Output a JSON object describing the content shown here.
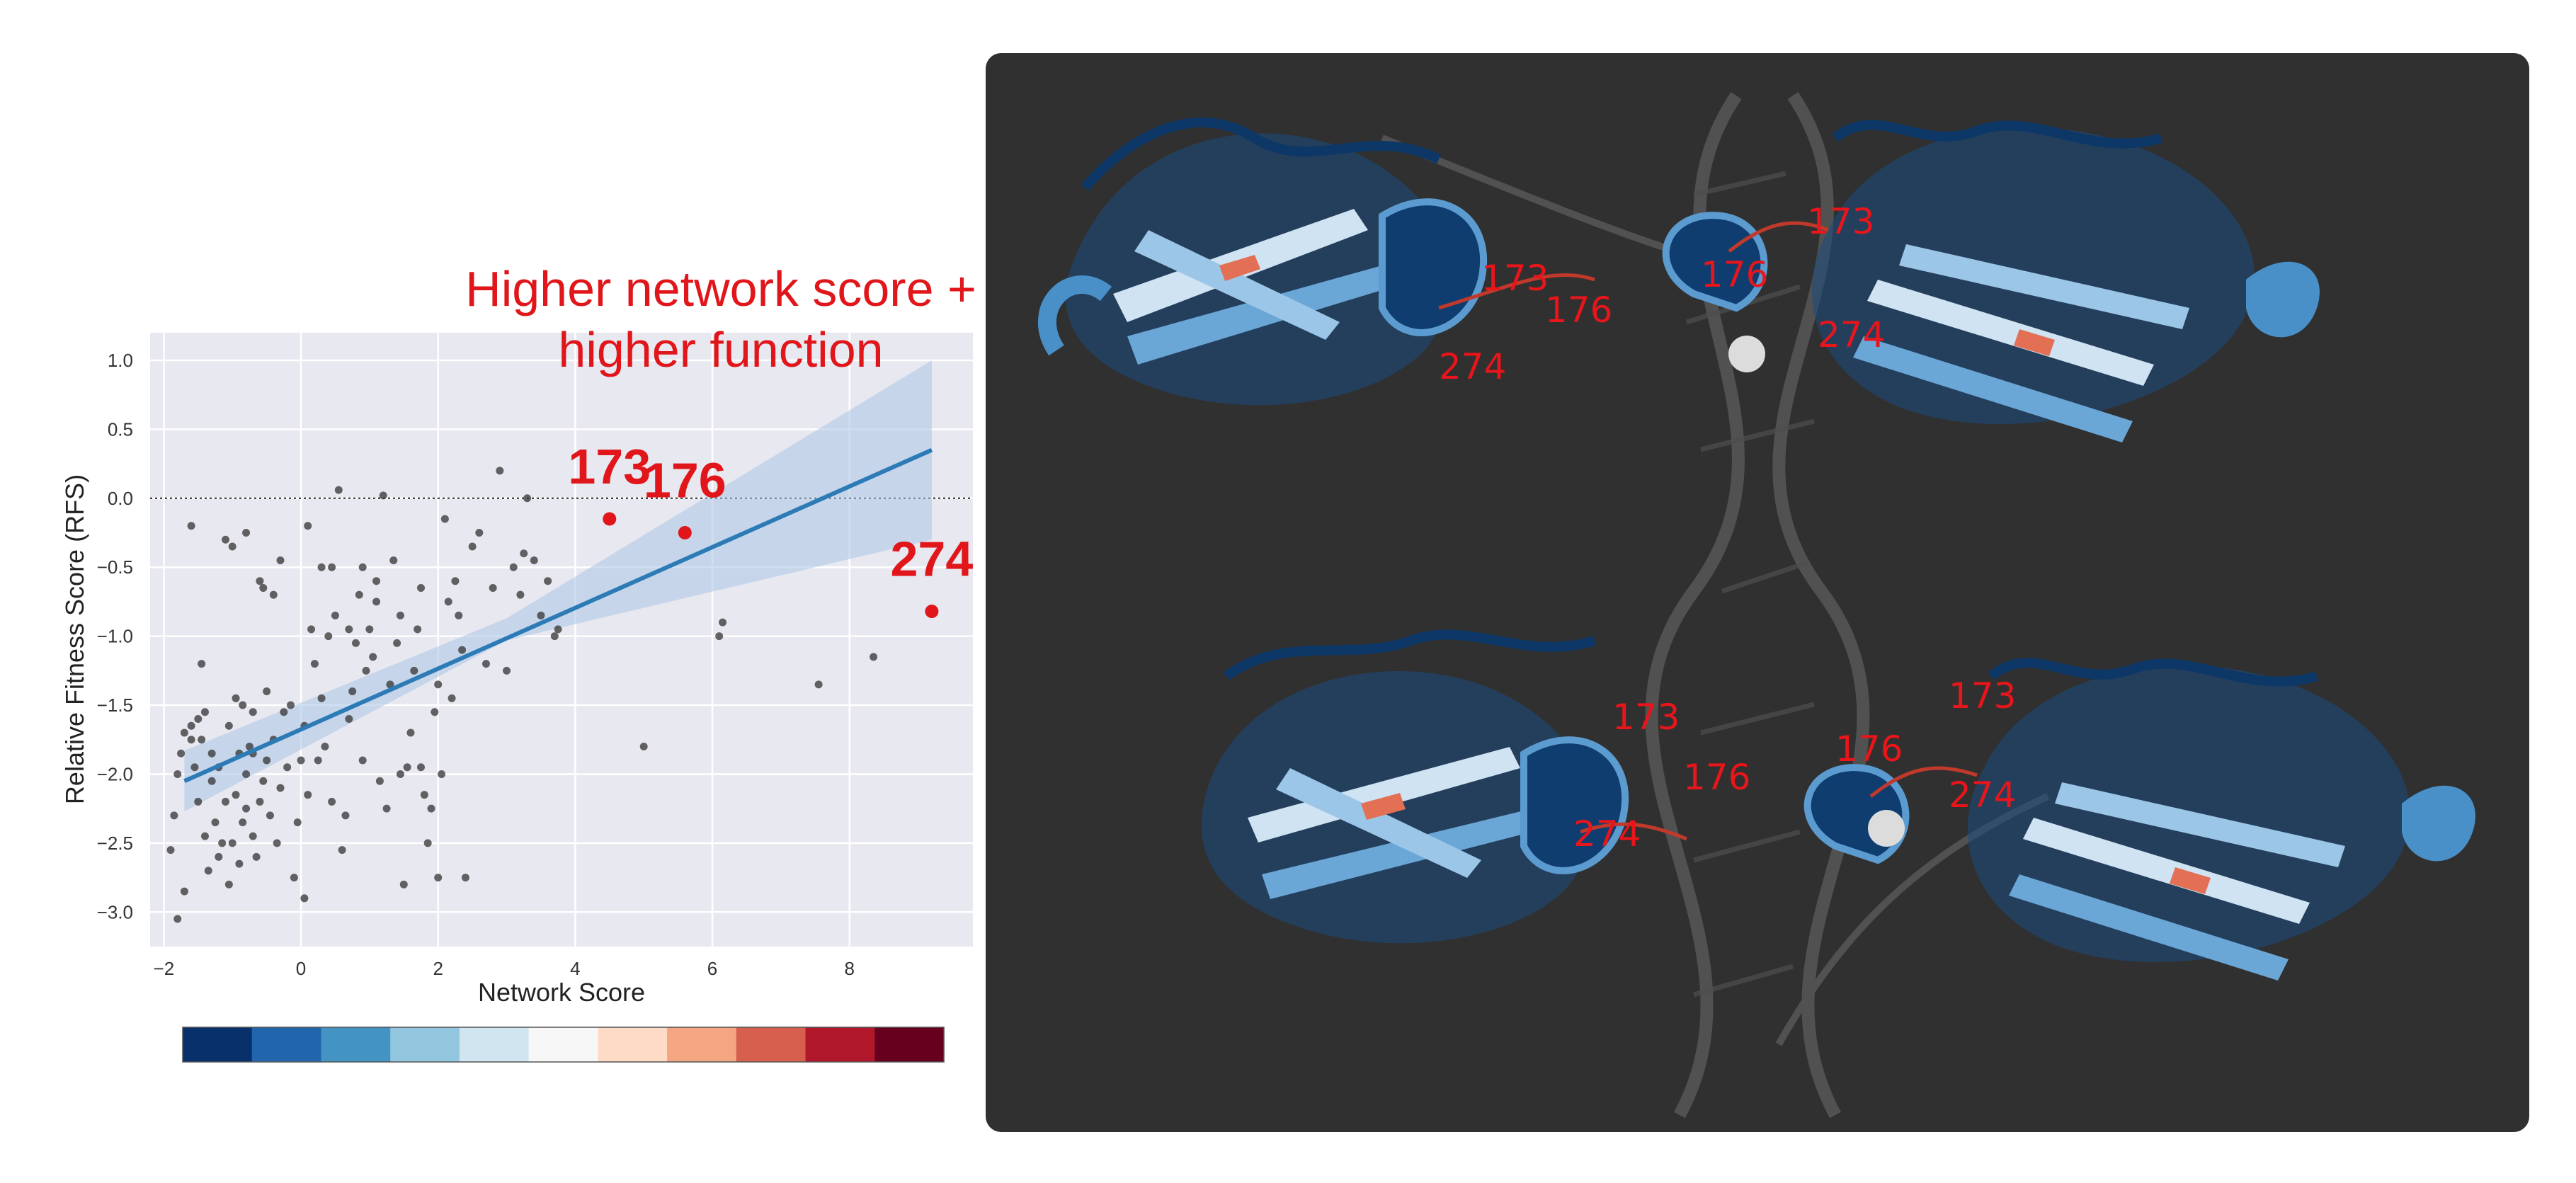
{
  "chart_data": {
    "type": "scatter",
    "title": "",
    "xlabel": "Network Score",
    "ylabel": "Relative Fitness Score (RFS)",
    "xlim": [
      -2.2,
      9.8
    ],
    "ylim": [
      -3.25,
      1.2
    ],
    "x_ticks": [
      -2,
      0,
      2,
      4,
      6,
      8
    ],
    "y_ticks": [
      1.0,
      0.5,
      0.0,
      -0.5,
      -1.0,
      -1.5,
      -2.0,
      -2.5,
      -3.0
    ],
    "x_tick_labels": [
      "−2",
      "0",
      "2",
      "4",
      "6",
      "8"
    ],
    "y_tick_labels": [
      "1.0",
      "0.5",
      "0.0",
      "−0.5",
      "−1.0",
      "−1.5",
      "−2.0",
      "−2.5",
      "−3.0"
    ],
    "grid": true,
    "reference_line": {
      "y": 0.0,
      "style": "dotted"
    },
    "series": [
      {
        "marker_color": "#333333",
        "points": [
          [
            -1.6,
            -0.2
          ],
          [
            -1.8,
            -3.05
          ],
          [
            -1.7,
            -2.85
          ],
          [
            -1.9,
            -2.55
          ],
          [
            -1.85,
            -2.3
          ],
          [
            -1.8,
            -2.0
          ],
          [
            -1.75,
            -1.85
          ],
          [
            -1.7,
            -1.7
          ],
          [
            -1.6,
            -1.65
          ],
          [
            -1.5,
            -1.6
          ],
          [
            -1.45,
            -1.75
          ],
          [
            -1.55,
            -1.95
          ],
          [
            -1.5,
            -2.2
          ],
          [
            -1.4,
            -2.45
          ],
          [
            -1.35,
            -2.7
          ],
          [
            -1.3,
            -2.05
          ],
          [
            -1.25,
            -2.35
          ],
          [
            -1.2,
            -2.6
          ],
          [
            -1.1,
            -2.2
          ],
          [
            -1.05,
            -2.8
          ],
          [
            -1.0,
            -2.5
          ],
          [
            -0.95,
            -2.15
          ],
          [
            -0.9,
            -2.65
          ],
          [
            -0.85,
            -2.35
          ],
          [
            -0.8,
            -2.0
          ],
          [
            -0.75,
            -1.8
          ],
          [
            -0.7,
            -2.45
          ],
          [
            -0.65,
            -2.6
          ],
          [
            -0.6,
            -2.2
          ],
          [
            -0.55,
            -2.05
          ],
          [
            -0.5,
            -1.9
          ],
          [
            -0.45,
            -2.3
          ],
          [
            -0.4,
            -1.75
          ],
          [
            -0.35,
            -2.5
          ],
          [
            -0.3,
            -2.1
          ],
          [
            -0.2,
            -1.95
          ],
          [
            -0.1,
            -2.75
          ],
          [
            -0.05,
            -2.35
          ],
          [
            0.05,
            -2.9
          ],
          [
            0.1,
            -2.15
          ],
          [
            -1.6,
            -1.75
          ],
          [
            -1.4,
            -1.55
          ],
          [
            -1.3,
            -1.85
          ],
          [
            -1.2,
            -1.95
          ],
          [
            -1.15,
            -2.5
          ],
          [
            -1.05,
            -1.65
          ],
          [
            -0.95,
            -1.45
          ],
          [
            -0.9,
            -1.85
          ],
          [
            -0.8,
            -2.25
          ],
          [
            -0.7,
            -1.85
          ],
          [
            -1.1,
            -0.3
          ],
          [
            -1.0,
            -0.35
          ],
          [
            -0.8,
            -0.25
          ],
          [
            -0.6,
            -0.6
          ],
          [
            -0.55,
            -0.65
          ],
          [
            -0.4,
            -0.7
          ],
          [
            -0.3,
            -0.45
          ],
          [
            -0.5,
            -1.4
          ],
          [
            -0.7,
            -1.55
          ],
          [
            -0.85,
            -1.5
          ],
          [
            -1.45,
            -1.2
          ],
          [
            0.0,
            -1.9
          ],
          [
            0.05,
            -1.65
          ],
          [
            0.15,
            -0.95
          ],
          [
            0.2,
            -1.2
          ],
          [
            0.25,
            -1.9
          ],
          [
            0.3,
            -1.45
          ],
          [
            0.1,
            -0.2
          ],
          [
            0.3,
            -0.5
          ],
          [
            0.35,
            -1.8
          ],
          [
            0.4,
            -1.0
          ],
          [
            0.45,
            -0.5
          ],
          [
            0.5,
            -0.85
          ],
          [
            0.55,
            0.06
          ],
          [
            0.6,
            -2.55
          ],
          [
            0.65,
            -2.3
          ],
          [
            0.7,
            -1.6
          ],
          [
            0.75,
            -1.4
          ],
          [
            0.8,
            -1.05
          ],
          [
            0.85,
            -0.7
          ],
          [
            0.9,
            -1.9
          ],
          [
            0.95,
            -1.25
          ],
          [
            1.0,
            -0.95
          ],
          [
            1.05,
            -1.15
          ],
          [
            1.1,
            -0.75
          ],
          [
            1.15,
            -2.05
          ],
          [
            1.2,
            0.02
          ],
          [
            1.25,
            -2.25
          ],
          [
            1.3,
            -1.35
          ],
          [
            1.35,
            -0.45
          ],
          [
            1.4,
            -1.05
          ],
          [
            1.45,
            -0.85
          ],
          [
            1.5,
            -2.8
          ],
          [
            1.55,
            -1.95
          ],
          [
            1.6,
            -1.7
          ],
          [
            1.65,
            -1.25
          ],
          [
            1.7,
            -0.95
          ],
          [
            1.75,
            -0.65
          ],
          [
            1.8,
            -2.15
          ],
          [
            1.85,
            -2.5
          ],
          [
            1.9,
            -2.25
          ],
          [
            1.95,
            -1.55
          ],
          [
            2.0,
            -1.35
          ],
          [
            2.05,
            -2.0
          ],
          [
            2.1,
            -0.15
          ],
          [
            2.15,
            -0.75
          ],
          [
            2.2,
            -1.45
          ],
          [
            2.25,
            -0.6
          ],
          [
            2.3,
            -0.85
          ],
          [
            2.35,
            -1.1
          ],
          [
            2.4,
            -2.75
          ],
          [
            2.5,
            -0.35
          ],
          [
            2.6,
            -0.25
          ],
          [
            2.7,
            -1.2
          ],
          [
            2.8,
            -0.65
          ],
          [
            2.9,
            0.2
          ],
          [
            3.0,
            -1.25
          ],
          [
            3.1,
            -0.5
          ],
          [
            3.2,
            -0.7
          ],
          [
            3.25,
            -0.4
          ],
          [
            3.3,
            0.0
          ],
          [
            3.4,
            -0.45
          ],
          [
            3.5,
            -0.85
          ],
          [
            3.6,
            -0.6
          ],
          [
            3.7,
            -1.0
          ],
          [
            3.75,
            -0.95
          ],
          [
            0.9,
            -0.5
          ],
          [
            1.1,
            -0.6
          ],
          [
            0.7,
            -0.95
          ],
          [
            -0.15,
            -1.5
          ],
          [
            6.1,
            -1.0
          ],
          [
            6.15,
            -0.9
          ],
          [
            5.0,
            -1.8
          ],
          [
            7.55,
            -1.35
          ],
          [
            8.35,
            -1.15
          ],
          [
            1.45,
            -2.0
          ],
          [
            2.0,
            -2.75
          ],
          [
            -0.25,
            -1.55
          ],
          [
            0.45,
            -2.2
          ],
          [
            1.75,
            -1.95
          ]
        ]
      }
    ],
    "regression": {
      "x0": -1.7,
      "y0": -2.05,
      "x1": 9.2,
      "y1": 0.35,
      "color": "#2c7bb6",
      "ci_color": "#a9c5e3"
    },
    "highlighted_points": [
      {
        "label": "173",
        "x": 4.5,
        "y": -0.15
      },
      {
        "label": "176",
        "x": 5.6,
        "y": -0.25
      },
      {
        "label": "274",
        "x": 9.2,
        "y": -0.82
      }
    ],
    "annotation_lines": [
      "Higher network score +",
      "higher function"
    ],
    "highlight_color": "#e0161b"
  },
  "colorbar": {
    "colors": [
      "#08306b",
      "#2166ac",
      "#4393c3",
      "#92c5de",
      "#d1e5f0",
      "#f7f7f7",
      "#fddbc7",
      "#f4a582",
      "#d6604d",
      "#b2182b",
      "#67001f"
    ]
  },
  "structure": {
    "residue_labels": [
      "173",
      "176",
      "274",
      "173",
      "176",
      "274",
      "173",
      "176",
      "274",
      "173",
      "176",
      "274"
    ]
  }
}
